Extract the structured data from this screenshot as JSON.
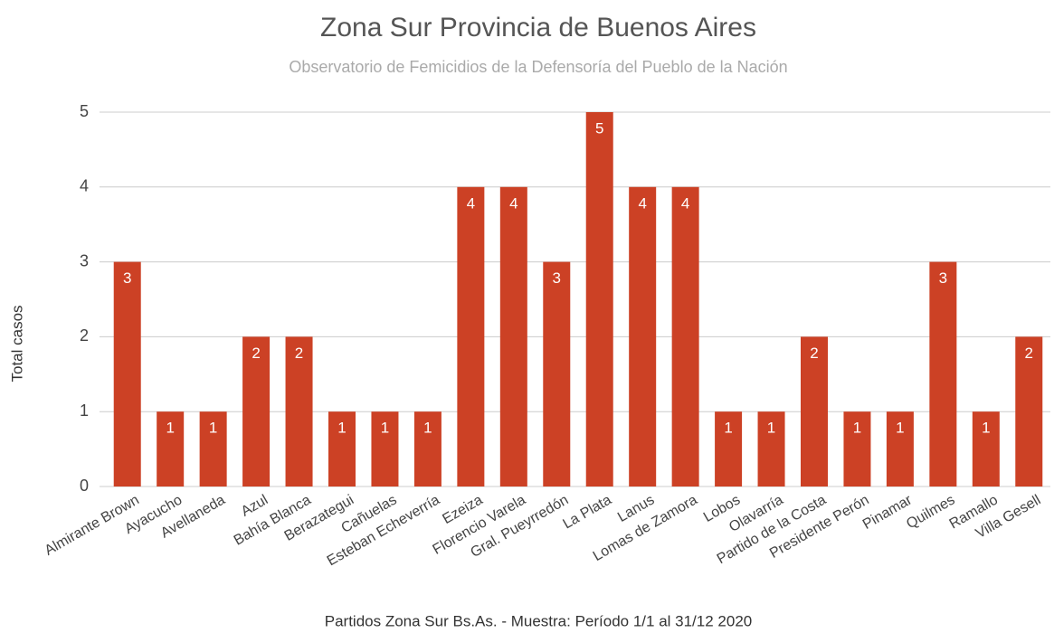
{
  "chart_data": {
    "type": "bar",
    "title": "Zona Sur Provincia de Buenos Aires",
    "subtitle": "Observatorio de Femicidios de la Defensoría del Pueblo de la Nación",
    "x_label": "Partidos Zona Sur Bs.As. - Muestra: Período 1/1 al 31/12 2020",
    "y_label": "Total casos",
    "categories": [
      "Almirante Brown",
      "Ayacucho",
      "Avellaneda",
      "Azul",
      "Bahía Blanca",
      "Berazategui",
      "Cañuelas",
      "Esteban Echeverría",
      "Ezeiza",
      "Florencio Varela",
      "Gral. Pueyrredón",
      "La Plata",
      "Lanus",
      "Lomas de Zamora",
      "Lobos",
      "Olavarría",
      "Partido de la Costa",
      "Presidente Perón",
      "Pinamar",
      "Quilmes",
      "Ramallo",
      "Villa Gesell"
    ],
    "values": [
      3,
      1,
      1,
      2,
      2,
      1,
      1,
      1,
      4,
      4,
      3,
      5,
      4,
      4,
      1,
      1,
      2,
      1,
      1,
      3,
      1,
      2
    ],
    "color": "#cc4125",
    "ylim": [
      0,
      5
    ],
    "yticks": [
      0,
      1,
      2,
      3,
      4,
      5
    ],
    "grid": true
  }
}
